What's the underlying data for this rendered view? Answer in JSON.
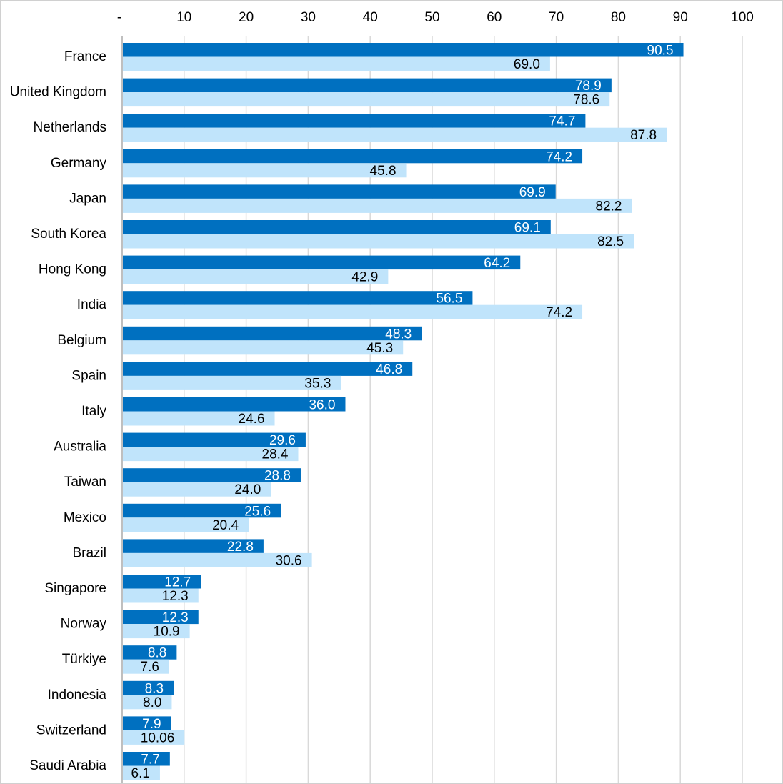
{
  "chart_data": {
    "type": "bar",
    "orientation": "horizontal",
    "title": "",
    "xlabel": "",
    "ylabel": "",
    "xlim": [
      0,
      100
    ],
    "x_ticks": [
      "-",
      "10",
      "20",
      "30",
      "40",
      "50",
      "60",
      "70",
      "80",
      "90",
      "100"
    ],
    "grid": true,
    "legend": "none",
    "categories": [
      "France",
      "United Kingdom",
      "Netherlands",
      "Germany",
      "Japan",
      "South Korea",
      "Hong Kong",
      "India",
      "Belgium",
      "Spain",
      "Italy",
      "Australia",
      "Taiwan",
      "Mexico",
      "Brazil",
      "Singapore",
      "Norway",
      "Türkiye",
      "Indonesia",
      "Switzerland",
      "Saudi Arabia"
    ],
    "series": [
      {
        "name": "Series 1",
        "color": "#0070C0",
        "values": [
          90.5,
          78.9,
          74.7,
          74.2,
          69.9,
          69.1,
          64.2,
          56.5,
          48.3,
          46.8,
          36.0,
          29.6,
          28.8,
          25.6,
          22.8,
          12.7,
          12.3,
          8.8,
          8.3,
          7.9,
          7.7
        ],
        "labels": [
          "90.5",
          "78.9",
          "74.7",
          "74.2",
          "69.9",
          "69.1",
          "64.2",
          "56.5",
          "48.3",
          "46.8",
          "36.0",
          "29.6",
          "28.8",
          "25.6",
          "22.8",
          "12.7",
          "12.3",
          "8.8",
          "8.3",
          "7.9",
          "7.7"
        ]
      },
      {
        "name": "Series 2",
        "color": "#C0E4FB",
        "values": [
          69.0,
          78.6,
          87.8,
          45.8,
          82.2,
          82.5,
          42.9,
          74.2,
          45.3,
          35.3,
          24.6,
          28.4,
          24.0,
          20.4,
          30.6,
          12.3,
          10.9,
          7.6,
          8.0,
          10.06,
          6.1
        ],
        "labels": [
          "69.0",
          "78.6",
          "87.8",
          "45.8",
          "82.2",
          "82.5",
          "42.9",
          "74.2",
          "45.3",
          "35.3",
          "24.6",
          "28.4",
          "24.0",
          "20.4",
          "30.6",
          "12.3",
          "10.9",
          "7.6",
          "8.0",
          "10.06",
          "6.1"
        ]
      }
    ]
  }
}
